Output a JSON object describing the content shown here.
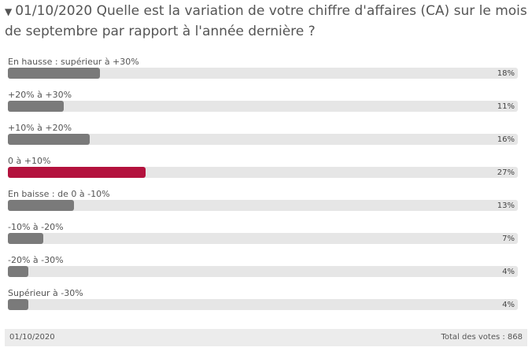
{
  "poll": {
    "date": "01/10/2020",
    "question": "Quelle est la variation de votre chiffre d'affaires (CA) sur le mois de septembre par rapport à l'année dernière ?",
    "options": [
      {
        "label": "En hausse : supérieur à +30%",
        "value": 18,
        "value_label": "18%",
        "color": "#7a7a7a"
      },
      {
        "label": "+20% à +30%",
        "value": 11,
        "value_label": "11%",
        "color": "#7a7a7a"
      },
      {
        "label": "+10% à +20%",
        "value": 16,
        "value_label": "16%",
        "color": "#7a7a7a"
      },
      {
        "label": "0 à +10%",
        "value": 27,
        "value_label": "27%",
        "color": "#b3123d"
      },
      {
        "label": "En baisse : de 0 à -10%",
        "value": 13,
        "value_label": "13%",
        "color": "#7a7a7a"
      },
      {
        "label": "-10% à -20%",
        "value": 7,
        "value_label": "7%",
        "color": "#7a7a7a"
      },
      {
        "label": "-20% à -30%",
        "value": 4,
        "value_label": "4%",
        "color": "#7a7a7a"
      },
      {
        "label": "Supérieur à -30%",
        "value": 4,
        "value_label": "4%",
        "color": "#7a7a7a"
      }
    ],
    "footer_date": "01/10/2020",
    "total": "Total des votes : 868"
  }
}
